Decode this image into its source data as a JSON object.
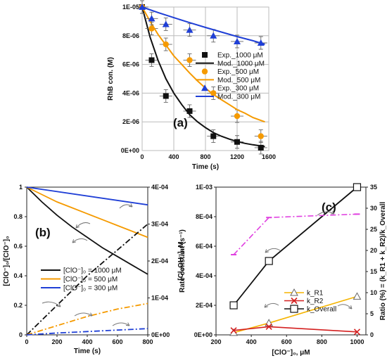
{
  "chart_data": [
    {
      "type": "scatter",
      "panel_label": "(a)",
      "xlabel": "Time (s)",
      "ylabel": "RhB con. (M)",
      "xlim": [
        0,
        1600
      ],
      "ylim": [
        0,
        1e-05
      ],
      "xticks": [
        0,
        400,
        800,
        1200,
        1600
      ],
      "xtick_labels": [
        "0",
        "400",
        "800",
        "1200",
        "1600"
      ],
      "yticks": [
        0,
        2e-06,
        4e-06,
        6e-06,
        8e-06,
        1e-05
      ],
      "ytick_labels": [
        "0E+00",
        "2E-06",
        "4E-06",
        "6E-06",
        "8E-06",
        "1E-05"
      ],
      "grid": true,
      "legend_position": "right",
      "series": [
        {
          "name": "Exp._1000 μM",
          "kind": "points",
          "marker": "square",
          "color": "#111111",
          "x": [
            0,
            120,
            300,
            600,
            900,
            1200,
            1500
          ],
          "y": [
            1e-05,
            6.3e-06,
            3.8e-06,
            2.75e-06,
            1e-06,
            6e-07,
            2e-07
          ]
        },
        {
          "name": "Mod._1000 μM",
          "kind": "line",
          "color": "#111111",
          "x": [
            0,
            100,
            200,
            300,
            400,
            500,
            600,
            700,
            800,
            900,
            1000,
            1100,
            1200,
            1300,
            1400,
            1500,
            1550
          ],
          "y": [
            1e-05,
            7.9e-06,
            6.3e-06,
            5e-06,
            4e-06,
            3.2e-06,
            2.5e-06,
            2e-06,
            1.6e-06,
            1.25e-06,
            1e-06,
            8e-07,
            6.3e-07,
            5e-07,
            4e-07,
            3.2e-07,
            2.8e-07
          ]
        },
        {
          "name": "Exp._500 μM",
          "kind": "points",
          "marker": "circle",
          "color": "#f59a00",
          "x": [
            0,
            120,
            300,
            600,
            900,
            1200,
            1500
          ],
          "y": [
            1e-05,
            8.5e-06,
            7.4e-06,
            6.3e-06,
            4e-06,
            2.4e-06,
            1e-06
          ]
        },
        {
          "name": "Mod._500 μM",
          "kind": "line",
          "color": "#f59a00",
          "x": [
            0,
            100,
            200,
            300,
            400,
            500,
            600,
            700,
            800,
            900,
            1000,
            1100,
            1200,
            1300,
            1400,
            1500,
            1550
          ],
          "y": [
            1e-05,
            9e-06,
            8.1e-06,
            7.35e-06,
            6.6e-06,
            6e-06,
            5.4e-06,
            4.85e-06,
            4.35e-06,
            3.9e-06,
            3.55e-06,
            3.2e-06,
            2.85e-06,
            2.6e-06,
            2.3e-06,
            2.1e-06,
            2e-06
          ]
        },
        {
          "name": "Exp._300 μM",
          "kind": "points",
          "marker": "triangle",
          "color": "#1f3fd6",
          "x": [
            0,
            120,
            300,
            600,
            900,
            1200,
            1500
          ],
          "y": [
            1e-05,
            9.2e-06,
            8.8e-06,
            8.4e-06,
            8e-06,
            7.6e-06,
            7.5e-06
          ]
        },
        {
          "name": "Mod._300 μM",
          "kind": "line",
          "color": "#1f3fd6",
          "x": [
            0,
            200,
            400,
            600,
            800,
            1000,
            1200,
            1400,
            1550
          ],
          "y": [
            1e-05,
            9.62e-06,
            9.26e-06,
            8.91e-06,
            8.58e-06,
            8.26e-06,
            7.94e-06,
            7.65e-06,
            7.4e-06
          ]
        }
      ]
    },
    {
      "type": "line",
      "panel_label": "(b)",
      "xlabel": "Time (s)",
      "ylabel": "[ClO⁻]₀/[ClO⁻]₀",
      "y2label": "[Cl₂OH⁻], M",
      "xlim": [
        0,
        800
      ],
      "ylim": [
        0,
        1
      ],
      "y2lim": [
        0,
        0.0004
      ],
      "xticks": [
        0,
        200,
        400,
        600,
        800
      ],
      "xtick_labels": [
        "0",
        "200",
        "400",
        "600",
        "800"
      ],
      "yticks": [
        0,
        0.2,
        0.4,
        0.6,
        0.8,
        1
      ],
      "ytick_labels": [
        "0",
        "0.2",
        "0.4",
        "0.6",
        "0.8",
        "1"
      ],
      "y2ticks": [
        0,
        0.0001,
        0.0002,
        0.0003,
        0.0004
      ],
      "y2tick_labels": [
        "0E+00",
        "1E-04",
        "2E-04",
        "3E-04",
        "4E-04"
      ],
      "legend_position": "bottom-right",
      "series": [
        {
          "name": "[ClO⁻]₀ = 1000 μM",
          "axis": "left",
          "color": "#111111",
          "dash": "solid",
          "x": [
            0,
            100,
            200,
            300,
            400,
            500,
            600,
            700,
            800
          ],
          "y": [
            1,
            0.9,
            0.81,
            0.73,
            0.66,
            0.59,
            0.53,
            0.47,
            0.41
          ]
        },
        {
          "name": "[ClO⁻]₀ = 500 μM",
          "axis": "left",
          "color": "#f59a00",
          "dash": "solid",
          "x": [
            0,
            100,
            200,
            300,
            400,
            500,
            600,
            700,
            800
          ],
          "y": [
            1,
            0.95,
            0.9,
            0.86,
            0.82,
            0.78,
            0.74,
            0.7,
            0.66
          ]
        },
        {
          "name": "[ClO⁻]₀ = 300 μM",
          "axis": "left",
          "color": "#1f3fd6",
          "dash": "solid",
          "x": [
            0,
            800
          ],
          "y": [
            1,
            0.88
          ]
        },
        {
          "name": "",
          "axis": "right",
          "color": "#111111",
          "dash": "dashdot",
          "x": [
            0,
            200,
            400,
            600,
            800
          ],
          "y": [
            0,
            8e-05,
            0.00016,
            0.00023,
            0.0003
          ]
        },
        {
          "name": "",
          "axis": "right",
          "color": "#f59a00",
          "dash": "dashdot",
          "x": [
            0,
            200,
            400,
            600,
            800
          ],
          "y": [
            0,
            2.5e-05,
            5e-05,
            7e-05,
            8.5e-05
          ]
        },
        {
          "name": "",
          "axis": "right",
          "color": "#1f3fd6",
          "dash": "dashdot",
          "x": [
            0,
            200,
            400,
            600,
            800
          ],
          "y": [
            0,
            5e-06,
            9e-06,
            1.3e-05,
            1.7e-05
          ]
        }
      ]
    },
    {
      "type": "line",
      "panel_label": "(c)",
      "xlabel": "[ClO⁻]₀, μM",
      "ylabel": "Rate constant (s⁻¹)",
      "y2label": "Ratio (%) = (k_R1 + k_R2)/k_Overall",
      "xlim": [
        200,
        1050
      ],
      "ylim": [
        0,
        0.001
      ],
      "y2lim": [
        0,
        35
      ],
      "xticks": [
        200,
        400,
        600,
        800,
        1000
      ],
      "xtick_labels": [
        "200",
        "400",
        "600",
        "800",
        "1000"
      ],
      "yticks": [
        0,
        0.0002,
        0.0004,
        0.0006,
        0.0008,
        0.001
      ],
      "ytick_labels": [
        "0E+00",
        "2E-04",
        "4E-04",
        "6E-04",
        "8E-04",
        "1E-03"
      ],
      "y2ticks": [
        0,
        5,
        10,
        15,
        20,
        25,
        30,
        35
      ],
      "y2tick_labels": [
        "0",
        "5",
        "10",
        "15",
        "20",
        "25",
        "30",
        "35"
      ],
      "legend_position": "bottom-right",
      "series": [
        {
          "name": "k_R1",
          "axis": "left",
          "color": "#f5b400",
          "marker": "triangle",
          "x": [
            300,
            500,
            1000
          ],
          "y": [
            1.5e-05,
            8e-05,
            0.00026
          ]
        },
        {
          "name": "k_R2",
          "axis": "left",
          "color": "#d42020",
          "marker": "x",
          "x": [
            300,
            500,
            1000
          ],
          "y": [
            3e-05,
            5.5e-05,
            2e-05
          ]
        },
        {
          "name": "k_Overall",
          "axis": "left",
          "color": "#111111",
          "marker": "square",
          "x": [
            300,
            500,
            1000
          ],
          "y": [
            0.0002,
            0.0005,
            0.001
          ]
        },
        {
          "name": "",
          "axis": "right",
          "color": "#e040e0",
          "marker": "none",
          "dash": "dashdot",
          "x": [
            300,
            500,
            1000
          ],
          "y": [
            19,
            27.8,
            28.6
          ]
        }
      ]
    }
  ]
}
